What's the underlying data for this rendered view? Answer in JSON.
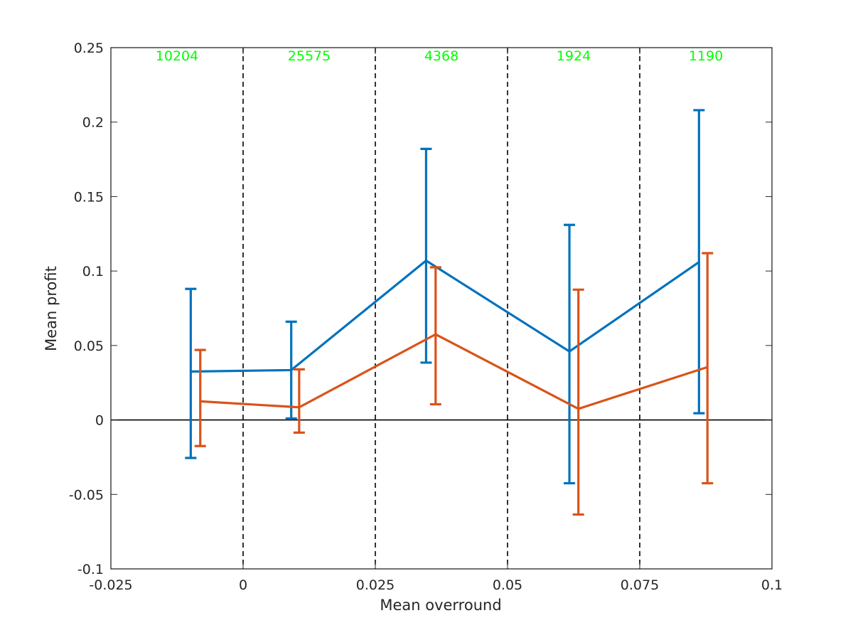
{
  "chart_data": {
    "type": "line",
    "title": "",
    "xlabel": "Mean overround",
    "ylabel": "Mean profit",
    "xlim": [
      -0.025,
      0.1
    ],
    "ylim": [
      -0.1,
      0.25
    ],
    "x_ticks": [
      -0.025,
      0,
      0.025,
      0.05,
      0.075,
      0.1
    ],
    "x_tick_labels": [
      "-0.025",
      "0",
      "0.025",
      "0.05",
      "0.075",
      "0.1"
    ],
    "y_ticks": [
      -0.1,
      -0.05,
      0,
      0.05,
      0.1,
      0.15,
      0.2,
      0.25
    ],
    "y_tick_labels": [
      "-0.1",
      "-0.05",
      "0",
      "0.05",
      "0.1",
      "0.15",
      "0.2",
      "0.25"
    ],
    "grid": false,
    "zero_line": 0,
    "bin_edges": [
      0,
      0.025,
      0.05,
      0.075
    ],
    "bin_counts": [
      {
        "x": -0.0125,
        "label": "10204"
      },
      {
        "x": 0.0125,
        "label": "25575"
      },
      {
        "x": 0.0375,
        "label": "4368"
      },
      {
        "x": 0.0625,
        "label": "1924"
      },
      {
        "x": 0.0875,
        "label": "1190"
      }
    ],
    "series": [
      {
        "color": "#0072BD",
        "x": [
          -0.0099,
          0.0091,
          0.0346,
          0.0617,
          0.0862
        ],
        "y": [
          0.0325,
          0.0335,
          0.107,
          0.046,
          0.106
        ],
        "err_low": [
          -0.0255,
          0.001,
          0.0385,
          -0.0425,
          0.0045
        ],
        "err_high": [
          0.088,
          0.066,
          0.182,
          0.131,
          0.208
        ]
      },
      {
        "color": "#D95319",
        "x": [
          -0.0081,
          0.0106,
          0.0364,
          0.0634,
          0.0878
        ],
        "y": [
          0.0125,
          0.0085,
          0.0575,
          0.0075,
          0.0355
        ],
        "err_low": [
          -0.0175,
          -0.0085,
          0.0105,
          -0.0635,
          -0.0425
        ],
        "err_high": [
          0.047,
          0.034,
          0.1025,
          0.0875,
          0.112
        ]
      }
    ],
    "colors": {
      "axes": "#262626",
      "count_labels": "#00FF00",
      "divider": "#000000"
    }
  }
}
